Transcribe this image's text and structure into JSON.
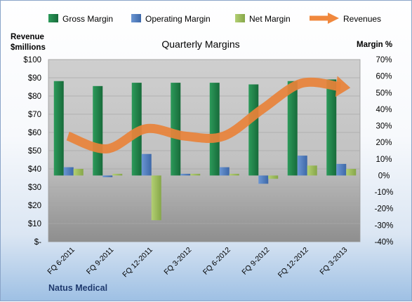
{
  "chart_data": {
    "type": "bar",
    "title": "Quarterly Margins",
    "left_axis_title": [
      "Revenue",
      "$millions"
    ],
    "right_axis_title": "Margin %",
    "footer": "Natus Medical",
    "categories": [
      "FQ 6-2011",
      "FQ 9-2011",
      "FQ 12-2011",
      "FQ 3-2012",
      "FQ 6-2012",
      "FQ 9-2012",
      "FQ 12-2012",
      "FQ 3-2013"
    ],
    "left_axis": {
      "min": 0,
      "max": 100,
      "step": 10,
      "tick_labels": [
        "$-",
        "$10",
        "$20",
        "$30",
        "$40",
        "$50",
        "$60",
        "$70",
        "$80",
        "$90",
        "$100"
      ]
    },
    "right_axis": {
      "min": -40,
      "max": 70,
      "step": 10,
      "tick_labels": [
        "-40%",
        "-30%",
        "-20%",
        "-10%",
        "0%",
        "10%",
        "20%",
        "30%",
        "40%",
        "50%",
        "60%",
        "70%"
      ]
    },
    "series": [
      {
        "name": "Gross Margin",
        "axis": "right",
        "kind": "bar",
        "color": "#1e7a46",
        "values": [
          57,
          54,
          56,
          56,
          56,
          55,
          57,
          58
        ]
      },
      {
        "name": "Operating Margin",
        "axis": "right",
        "kind": "bar",
        "color": "#4f7fc1",
        "values": [
          5,
          -1,
          13,
          1,
          5,
          -5,
          12,
          7
        ]
      },
      {
        "name": "Net Margin",
        "axis": "right",
        "kind": "bar",
        "color": "#9bbb59",
        "values": [
          4,
          1,
          -27,
          1,
          1,
          -2,
          6,
          4
        ]
      },
      {
        "name": "Revenues",
        "axis": "left",
        "kind": "arrow-line",
        "color": "#f0883d",
        "values": [
          58,
          51,
          62,
          58,
          58,
          73,
          87,
          85
        ]
      }
    ],
    "legend_position": "top",
    "grid": true
  }
}
